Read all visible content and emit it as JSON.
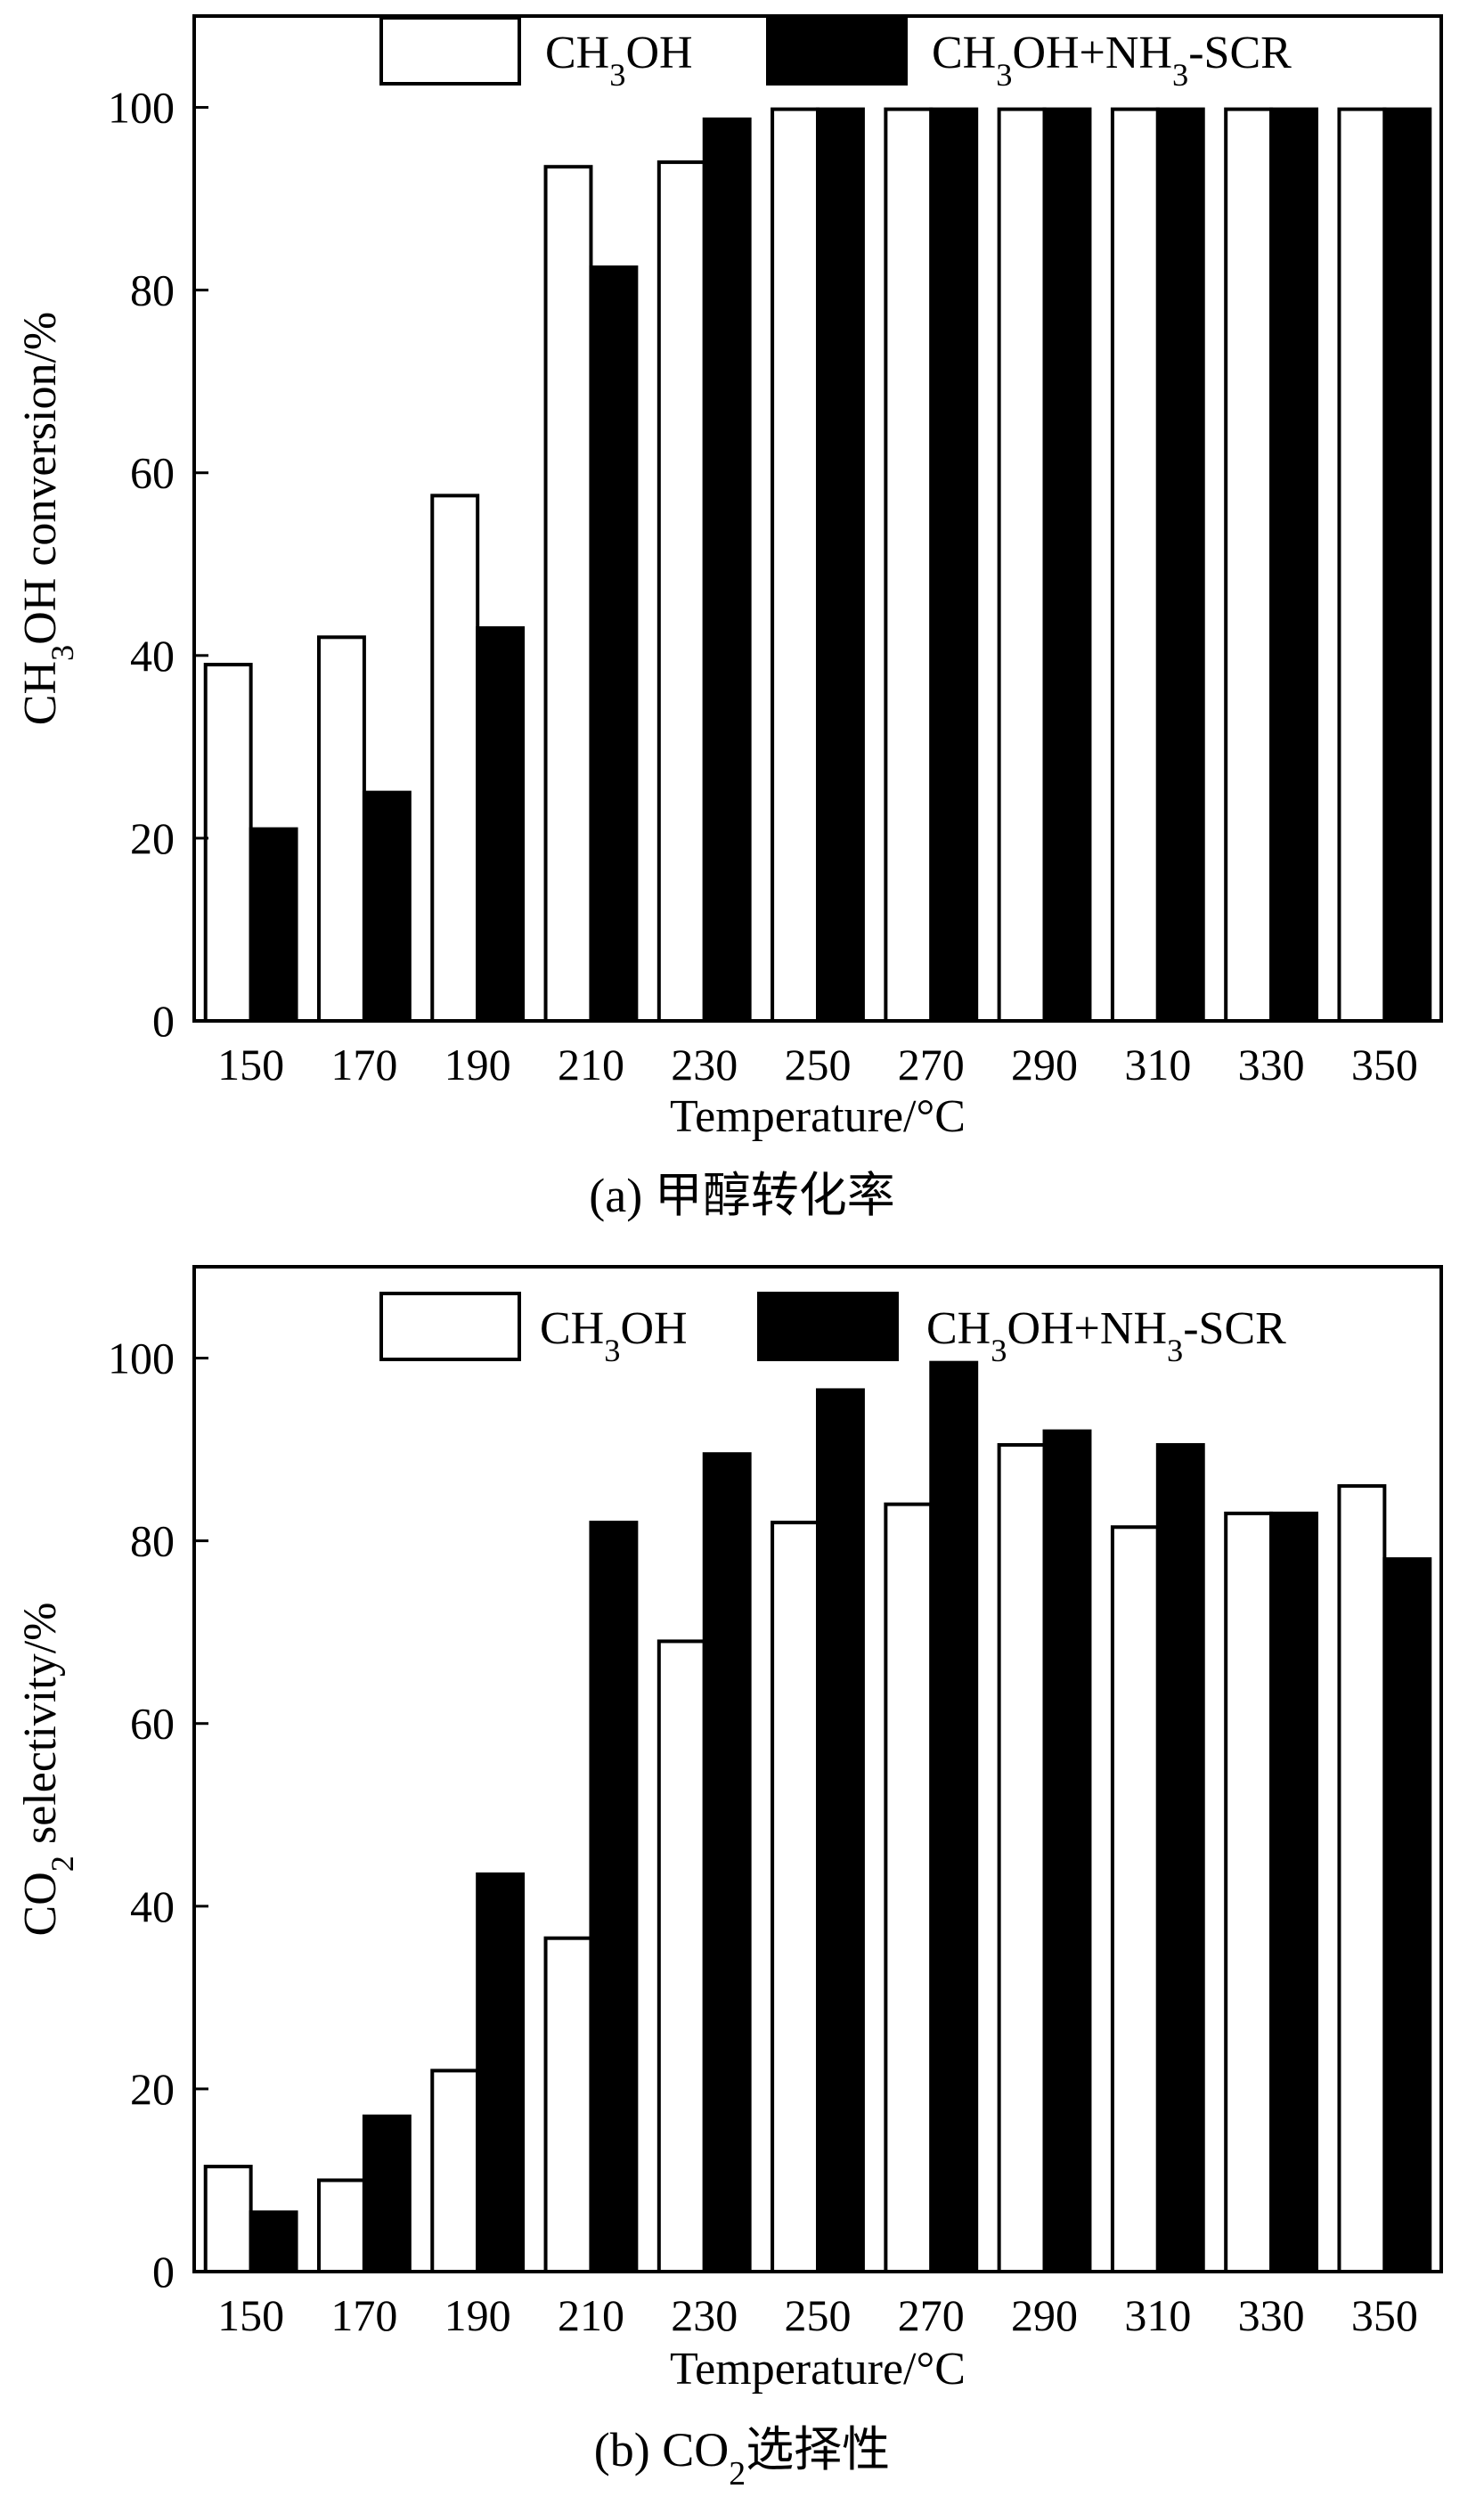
{
  "chart_data": [
    {
      "type": "bar",
      "categories": [
        "150",
        "170",
        "190",
        "210",
        "230",
        "250",
        "270",
        "290",
        "310",
        "330",
        "350"
      ],
      "series": [
        {
          "name": "CH3OH",
          "color": "#ffffff",
          "values": [
            39,
            42,
            57.5,
            93.5,
            94,
            99.8,
            99.8,
            99.8,
            99.8,
            99.8,
            99.8
          ]
        },
        {
          "name": "CH3OH+NH3-SCR",
          "color": "#000000",
          "values": [
            21,
            25,
            43,
            82.5,
            98.7,
            99.8,
            99.8,
            99.8,
            99.8,
            99.8,
            99.8
          ]
        }
      ],
      "xlabel": "Temperature/°C",
      "ylabel": "CH3OH conversion/%",
      "ylim": [
        0,
        110
      ],
      "yticks": [
        "0",
        "20",
        "40",
        "60",
        "80",
        "100"
      ],
      "legend_position": "top",
      "grid": false,
      "caption": "(a) 甲醇转化率"
    },
    {
      "type": "bar",
      "categories": [
        "150",
        "170",
        "190",
        "210",
        "230",
        "250",
        "270",
        "290",
        "310",
        "330",
        "350"
      ],
      "series": [
        {
          "name": "CH3OH",
          "color": "#ffffff",
          "values": [
            11.5,
            10,
            22,
            36.5,
            69,
            82,
            84,
            90.5,
            81.5,
            83,
            86
          ]
        },
        {
          "name": "CH3OH+NH3-SCR",
          "color": "#000000",
          "values": [
            6.5,
            17,
            43.5,
            82,
            89.5,
            96.5,
            99.5,
            92,
            90.5,
            83,
            78
          ]
        }
      ],
      "xlabel": "Temperature/°C",
      "ylabel": "CO2 selectivity/%",
      "ylim": [
        0,
        110
      ],
      "yticks": [
        "0",
        "20",
        "40",
        "60",
        "80",
        "100"
      ],
      "legend_position": "top",
      "grid": false,
      "caption": "(b) CO2选择性"
    }
  ]
}
